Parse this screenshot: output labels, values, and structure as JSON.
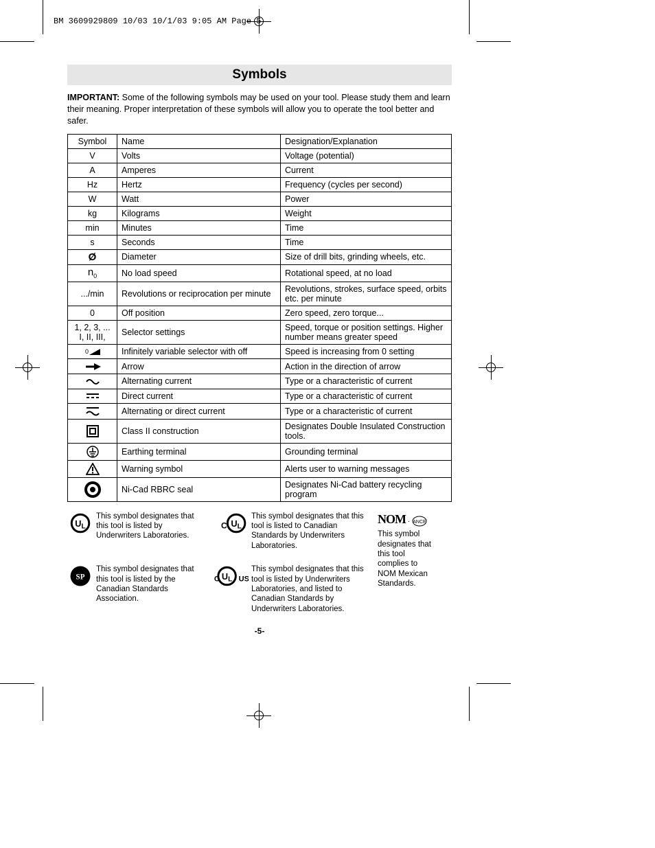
{
  "printHeader": "BM 3609929809 10/03  10/1/03  9:05 AM  Page 5",
  "title": "Symbols",
  "introBold": "IMPORTANT:",
  "introRest": " Some of the following symbols may be used on your tool.  Please study them and learn their meaning.  Proper interpretation of these symbols will allow you to operate the tool better and safer.",
  "cols": {
    "symbol": "Symbol",
    "name": "Name",
    "designation": "Designation/Explanation"
  },
  "rows": [
    {
      "sym": "V",
      "name": "Volts",
      "desc": "Voltage (potential)"
    },
    {
      "sym": "A",
      "name": "Amperes",
      "desc": "Current"
    },
    {
      "sym": "Hz",
      "name": "Hertz",
      "desc": "Frequency (cycles per second)"
    },
    {
      "sym": "W",
      "name": "Watt",
      "desc": "Power"
    },
    {
      "sym": "kg",
      "name": "Kilograms",
      "desc": "Weight"
    },
    {
      "sym": "min",
      "name": "Minutes",
      "desc": "Time"
    },
    {
      "sym": "s",
      "name": "Seconds",
      "desc": "Time"
    },
    {
      "sym": "diameter",
      "name": "Diameter",
      "desc": "Size of drill bits, grinding wheels,  etc."
    },
    {
      "sym": "n0",
      "name": "No load speed",
      "desc": "Rotational speed, at no load"
    },
    {
      "sym": ".../min",
      "name": "Revolutions or reciprocation per minute",
      "desc": "Revolutions, strokes, surface speed, orbits etc. per minute"
    },
    {
      "sym": "0",
      "name": "Off position",
      "desc": "Zero speed, zero torque..."
    },
    {
      "sym": "1, 2, 3, ...\nI, II, III,",
      "name": "Selector settings",
      "desc": "Speed, torque or position settings. Higher number means greater speed"
    },
    {
      "sym": "ramp",
      "name": "Infinitely variable selector with off",
      "desc": "Speed is increasing from 0 setting"
    },
    {
      "sym": "arrow",
      "name": "Arrow",
      "desc": "Action in the direction of arrow"
    },
    {
      "sym": "ac",
      "name": "Alternating current",
      "desc": "Type or a characteristic of current"
    },
    {
      "sym": "dc",
      "name": "Direct current",
      "desc": "Type or a characteristic of current"
    },
    {
      "sym": "acdc",
      "name": "Alternating or direct current",
      "desc": "Type or a characteristic of current"
    },
    {
      "sym": "class2",
      "name": "Class II  construction",
      "desc": "Designates Double Insulated Construction tools."
    },
    {
      "sym": "earth",
      "name": "Earthing terminal",
      "desc": "Grounding terminal"
    },
    {
      "sym": "warn",
      "name": "Warning symbol",
      "desc": "Alerts user to warning messages"
    },
    {
      "sym": "rbrc",
      "name": "Ni-Cad RBRC seal",
      "desc": "Designates Ni-Cad battery recycling program"
    }
  ],
  "certs": {
    "ul": "This symbol designates that this tool is listed by Underwriters Laboratories.",
    "cul": "This symbol designates that this tool is listed to Canadian Standards by Underwriters Laboratories.",
    "csa": "This symbol designates that this tool is listed by the Canadian Standards Association.",
    "culus": "This symbol designates that this tool is listed by Underwriters Laboratories, and listed to Canadian Standards by Underwriters Laboratories.",
    "nom": "This symbol designates that this tool complies to NOM Mexican Standards."
  },
  "pageNum": "-5-"
}
